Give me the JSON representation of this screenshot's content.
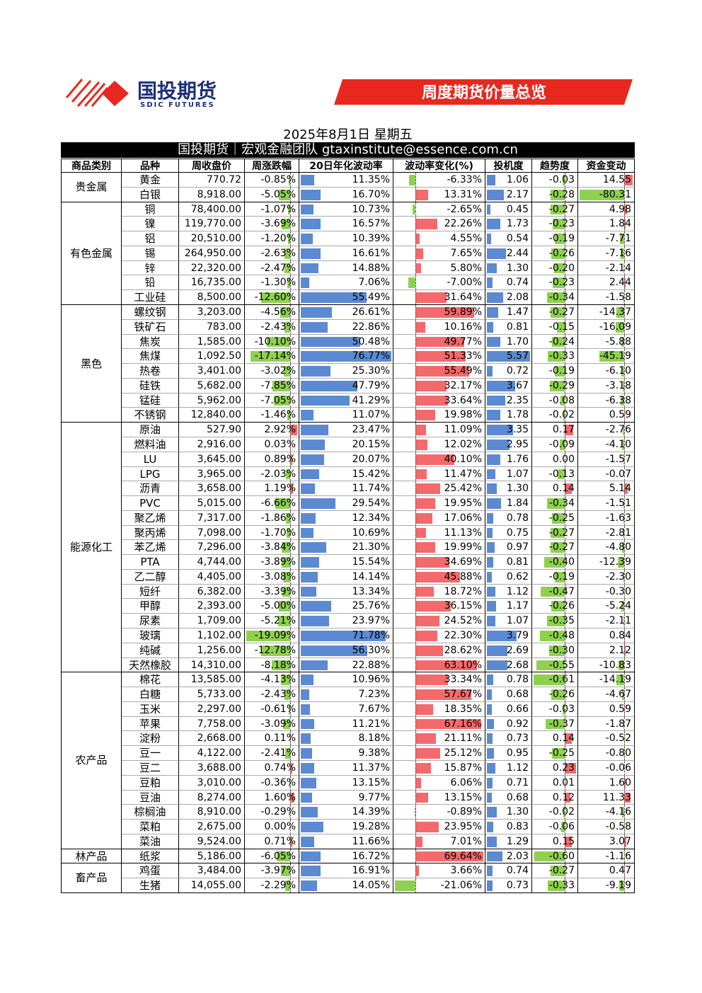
{
  "header": {
    "logo_cn": "国投期货",
    "logo_en": "SDIC FUTURES",
    "banner": "周度期货价量总览"
  },
  "date": "2025年8月1日 星期五",
  "subtitle": "国投期货｜宏观金融团队 gtaxinstitute@essence.com.cn",
  "table": {
    "columns": [
      "商品类别",
      "品种",
      "周收盘价",
      "周涨跌幅",
      "20日年化波动率",
      "波动率变化(%)",
      "投机度",
      "趋势度",
      "资金变动"
    ],
    "groups": [
      {
        "category": "贵金属",
        "rows": [
          [
            "黄金",
            "770.72",
            "-0.85%",
            "11.35%",
            "-6.33%",
            "1.06",
            "-0.03",
            "14.55"
          ],
          [
            "白银",
            "8,918.00",
            "-5.05%",
            "16.70%",
            "13.31%",
            "2.17",
            "-0.28",
            "-80.31"
          ]
        ]
      },
      {
        "category": "有色金属",
        "rows": [
          [
            "铜",
            "78,400.00",
            "-1.07%",
            "10.73%",
            "-2.65%",
            "0.45",
            "-0.27",
            "4.98"
          ],
          [
            "镍",
            "119,770.00",
            "-3.69%",
            "16.57%",
            "22.26%",
            "1.73",
            "-0.23",
            "1.84"
          ],
          [
            "铝",
            "20,510.00",
            "-1.20%",
            "10.39%",
            "4.55%",
            "0.54",
            "-0.19",
            "-7.71"
          ],
          [
            "锡",
            "264,950.00",
            "-2.63%",
            "16.61%",
            "7.65%",
            "2.44",
            "-0.26",
            "-7.16"
          ],
          [
            "锌",
            "22,320.00",
            "-2.47%",
            "14.88%",
            "5.80%",
            "1.30",
            "-0.20",
            "-2.14"
          ],
          [
            "铅",
            "16,735.00",
            "-1.30%",
            "7.06%",
            "-7.00%",
            "0.74",
            "-0.23",
            "2.44"
          ],
          [
            "工业硅",
            "8,500.00",
            "-12.60%",
            "55.49%",
            "31.64%",
            "2.08",
            "-0.34",
            "-1.58"
          ]
        ]
      },
      {
        "category": "黑色",
        "rows": [
          [
            "螺纹钢",
            "3,203.00",
            "-4.56%",
            "26.61%",
            "59.89%",
            "1.47",
            "-0.27",
            "-14.37"
          ],
          [
            "铁矿石",
            "783.00",
            "-2.43%",
            "22.86%",
            "10.16%",
            "0.81",
            "-0.15",
            "-16.09"
          ],
          [
            "焦炭",
            "1,585.00",
            "-10.10%",
            "50.48%",
            "49.77%",
            "1.70",
            "-0.24",
            "-5.88"
          ],
          [
            "焦煤",
            "1,092.50",
            "-17.14%",
            "76.77%",
            "51.33%",
            "5.57",
            "-0.33",
            "-45.19"
          ],
          [
            "热卷",
            "3,401.00",
            "-3.02%",
            "25.30%",
            "55.49%",
            "0.72",
            "-0.19",
            "-6.10"
          ],
          [
            "硅铁",
            "5,682.00",
            "-7.85%",
            "47.79%",
            "32.17%",
            "3.67",
            "-0.29",
            "-3.18"
          ],
          [
            "锰硅",
            "5,962.00",
            "-7.05%",
            "41.29%",
            "33.64%",
            "2.35",
            "-0.08",
            "-6.38"
          ],
          [
            "不锈钢",
            "12,840.00",
            "-1.46%",
            "11.07%",
            "19.98%",
            "1.78",
            "-0.02",
            "0.59"
          ]
        ]
      },
      {
        "category": "能源化工",
        "rows": [
          [
            "原油",
            "527.90",
            "2.92%",
            "23.47%",
            "11.09%",
            "3.35",
            "0.17",
            "-2.76"
          ],
          [
            "燃料油",
            "2,916.00",
            "0.03%",
            "20.15%",
            "12.02%",
            "2.95",
            "-0.09",
            "-4.10"
          ],
          [
            "LU",
            "3,645.00",
            "0.89%",
            "20.07%",
            "40.10%",
            "1.76",
            "0.00",
            "-1.57"
          ],
          [
            "LPG",
            "3,965.00",
            "-2.03%",
            "15.42%",
            "11.47%",
            "1.07",
            "-0.13",
            "-0.07"
          ],
          [
            "沥青",
            "3,658.00",
            "1.19%",
            "11.74%",
            "25.42%",
            "1.30",
            "0.14",
            "5.14"
          ],
          [
            "PVC",
            "5,015.00",
            "-6.66%",
            "29.54%",
            "19.95%",
            "1.84",
            "-0.34",
            "-1.51"
          ],
          [
            "聚乙烯",
            "7,317.00",
            "-1.86%",
            "12.34%",
            "17.06%",
            "0.78",
            "-0.25",
            "-1.63"
          ],
          [
            "聚丙烯",
            "7,098.00",
            "-1.70%",
            "10.69%",
            "11.13%",
            "0.75",
            "-0.27",
            "-2.81"
          ],
          [
            "苯乙烯",
            "7,296.00",
            "-3.84%",
            "21.30%",
            "19.99%",
            "0.97",
            "-0.27",
            "-4.80"
          ],
          [
            "PTA",
            "4,744.00",
            "-3.89%",
            "15.54%",
            "34.69%",
            "0.81",
            "-0.40",
            "-12.39"
          ],
          [
            "乙二醇",
            "4,405.00",
            "-3.08%",
            "14.14%",
            "45.88%",
            "0.62",
            "-0.19",
            "-2.30"
          ],
          [
            "短纤",
            "6,382.00",
            "-3.39%",
            "13.34%",
            "18.72%",
            "1.12",
            "-0.47",
            "-0.30"
          ],
          [
            "甲醇",
            "2,393.00",
            "-5.00%",
            "25.76%",
            "36.15%",
            "1.17",
            "-0.26",
            "-5.24"
          ],
          [
            "尿素",
            "1,709.00",
            "-5.21%",
            "23.97%",
            "24.52%",
            "1.07",
            "-0.35",
            "-2.11"
          ],
          [
            "玻璃",
            "1,102.00",
            "-19.09%",
            "71.78%",
            "22.30%",
            "3.79",
            "-0.48",
            "0.84"
          ],
          [
            "纯碱",
            "1,256.00",
            "-12.78%",
            "56.30%",
            "28.62%",
            "2.69",
            "-0.30",
            "2.12"
          ],
          [
            "天然橡胶",
            "14,310.00",
            "-8.18%",
            "22.88%",
            "63.10%",
            "2.68",
            "-0.55",
            "-10.83"
          ]
        ]
      },
      {
        "category": "农产品",
        "rows": [
          [
            "棉花",
            "13,585.00",
            "-4.13%",
            "10.96%",
            "33.34%",
            "0.78",
            "-0.61",
            "-14.19"
          ],
          [
            "白糖",
            "5,733.00",
            "-2.43%",
            "7.23%",
            "57.67%",
            "0.68",
            "-0.26",
            "-4.67"
          ],
          [
            "玉米",
            "2,297.00",
            "-0.61%",
            "7.67%",
            "18.35%",
            "0.66",
            "-0.03",
            "0.59"
          ],
          [
            "苹果",
            "7,758.00",
            "-3.09%",
            "11.21%",
            "67.16%",
            "0.92",
            "-0.37",
            "-1.87"
          ],
          [
            "淀粉",
            "2,668.00",
            "0.11%",
            "8.18%",
            "21.11%",
            "0.73",
            "0.14",
            "-0.52"
          ],
          [
            "豆一",
            "4,122.00",
            "-2.41%",
            "9.38%",
            "25.12%",
            "0.95",
            "-0.25",
            "-0.80"
          ],
          [
            "豆二",
            "3,688.00",
            "0.74%",
            "11.37%",
            "15.87%",
            "1.12",
            "0.23",
            "-0.06"
          ],
          [
            "豆粕",
            "3,010.00",
            "-0.36%",
            "13.15%",
            "6.06%",
            "0.71",
            "0.01",
            "1.60"
          ],
          [
            "豆油",
            "8,274.00",
            "1.60%",
            "9.77%",
            "13.15%",
            "0.68",
            "0.12",
            "11.33"
          ],
          [
            "棕榈油",
            "8,910.00",
            "-0.29%",
            "14.39%",
            "-0.89%",
            "1.30",
            "-0.02",
            "-4.16"
          ],
          [
            "菜粕",
            "2,675.00",
            "0.00%",
            "19.28%",
            "23.95%",
            "0.83",
            "-0.06",
            "-0.58"
          ],
          [
            "菜油",
            "9,524.00",
            "0.71%",
            "11.66%",
            "7.01%",
            "1.29",
            "0.15",
            "3.07"
          ]
        ]
      },
      {
        "category": "林产品",
        "rows": [
          [
            "纸浆",
            "5,186.00",
            "-6.05%",
            "16.72%",
            "69.64%",
            "2.03",
            "-0.60",
            "-1.16"
          ]
        ]
      },
      {
        "category": "畜产品",
        "rows": [
          [
            "鸡蛋",
            "3,484.00",
            "-3.97%",
            "16.91%",
            "3.66%",
            "0.74",
            "-0.27",
            "0.47"
          ],
          [
            "生猪",
            "14,055.00",
            "-2.29%",
            "14.05%",
            "-21.06%",
            "0.73",
            "-0.33",
            "-9.19"
          ]
        ]
      }
    ]
  }
}
